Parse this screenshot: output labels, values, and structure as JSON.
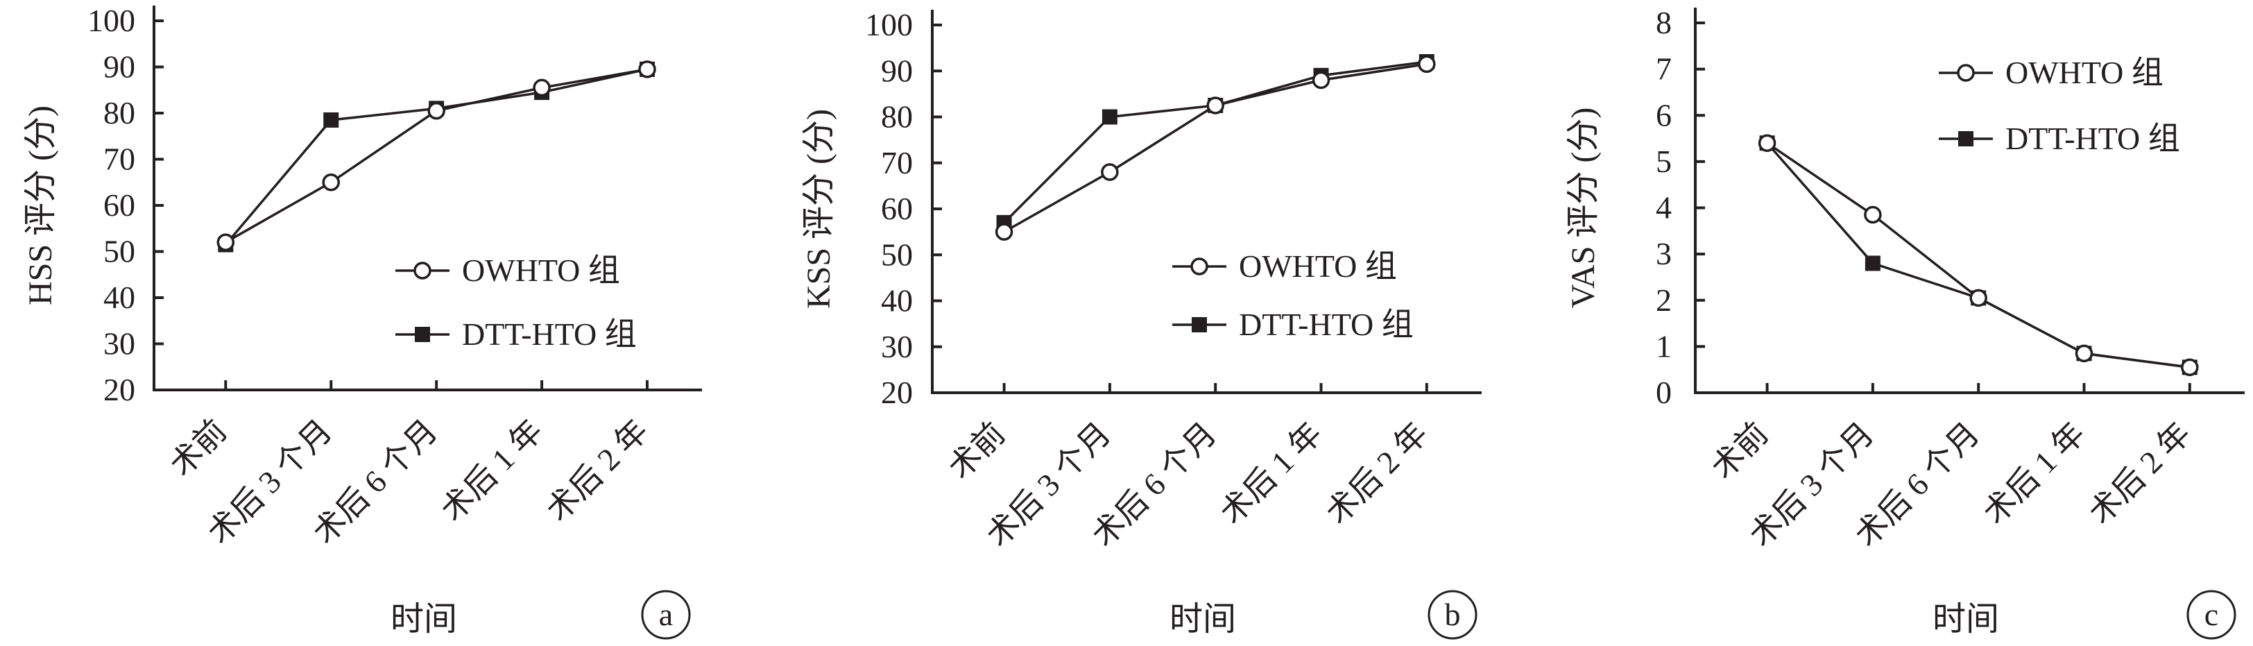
{
  "chart_data": [
    {
      "type": "line",
      "panel_label": "a",
      "ylabel": "HSS 评分 (分)",
      "xlabel": "时间",
      "categories": [
        "术前",
        "术后 3 个月",
        "术后 6 个月",
        "术后 1 年",
        "术后 2 年"
      ],
      "ylim": [
        20,
        100
      ],
      "yticks": [
        20,
        30,
        40,
        50,
        60,
        70,
        80,
        90,
        100
      ],
      "legend_position": "lower-right",
      "series": [
        {
          "name": "OWHTO 组",
          "marker": "open-circle",
          "values": [
            52,
            65,
            80.5,
            85.5,
            89.5
          ]
        },
        {
          "name": "DTT-HTO 组",
          "marker": "filled-square",
          "values": [
            51.5,
            78.5,
            81,
            84.5,
            89.5
          ]
        }
      ]
    },
    {
      "type": "line",
      "panel_label": "b",
      "ylabel": "KSS 评分 (分)",
      "xlabel": "时间",
      "categories": [
        "术前",
        "术后 3 个月",
        "术后 6 个月",
        "术后 1 年",
        "术后 2 年"
      ],
      "ylim": [
        20,
        100
      ],
      "yticks": [
        20,
        30,
        40,
        50,
        60,
        70,
        80,
        90,
        100
      ],
      "legend_position": "lower-right",
      "series": [
        {
          "name": "OWHTO 组",
          "marker": "open-circle",
          "values": [
            55,
            68,
            82.5,
            88,
            91.5
          ]
        },
        {
          "name": "DTT-HTO 组",
          "marker": "filled-square",
          "values": [
            57,
            80,
            82.5,
            89,
            92
          ]
        }
      ]
    },
    {
      "type": "line",
      "panel_label": "c",
      "ylabel": "VAS 评分 (分)",
      "xlabel": "时间",
      "categories": [
        "术前",
        "术后 3 个月",
        "术后 6 个月",
        "术后 1 年",
        "术后 2 年"
      ],
      "ylim": [
        0,
        8
      ],
      "yticks": [
        0,
        1,
        2,
        3,
        4,
        5,
        6,
        7,
        8
      ],
      "legend_position": "upper-right",
      "series": [
        {
          "name": "OWHTO 组",
          "marker": "open-circle",
          "values": [
            5.4,
            3.85,
            2.05,
            0.85,
            0.55
          ]
        },
        {
          "name": "DTT-HTO 组",
          "marker": "filled-square",
          "values": [
            5.4,
            2.8,
            2.05,
            0.85,
            0.55
          ]
        }
      ]
    }
  ]
}
